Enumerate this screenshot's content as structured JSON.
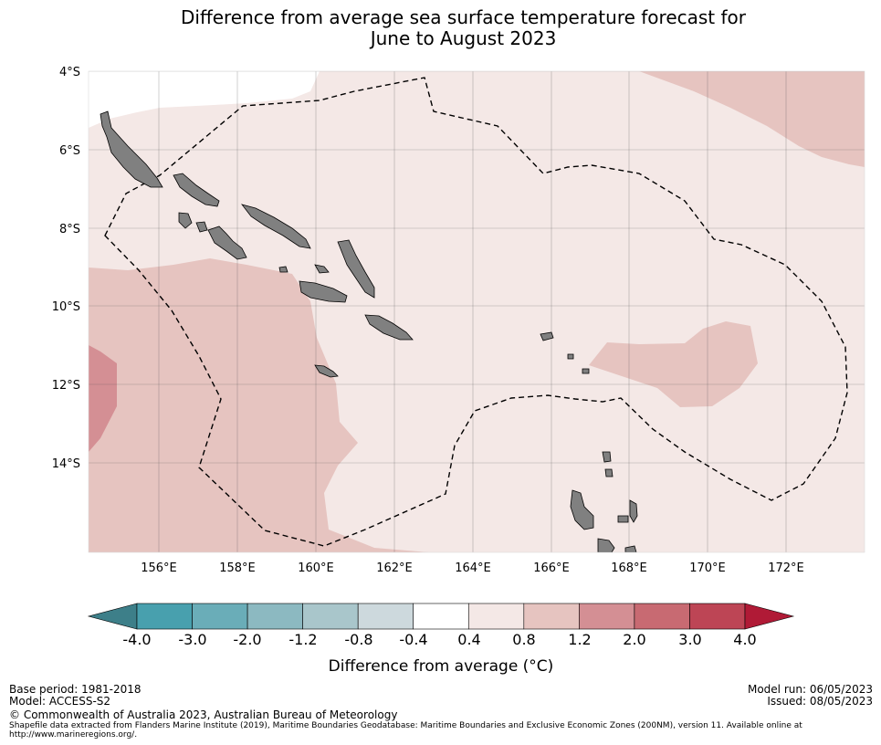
{
  "title_line1": "Difference from average sea surface temperature forecast for",
  "title_line2": "June to August 2023",
  "map": {
    "lat_labels": [
      "4°S",
      "6°S",
      "8°S",
      "10°S",
      "12°S",
      "14°S"
    ],
    "lon_labels": [
      "156°E",
      "158°E",
      "160°E",
      "162°E",
      "164°E",
      "166°E",
      "168°E",
      "170°E",
      "172°E"
    ],
    "colors": {
      "bin_0_4_0_8": "#f4e8e6",
      "bin_0_8_1_2": "#e6c4c0",
      "bin_1_2_2_0": "#d48f94",
      "land": "#808080",
      "eez_line": "#000000"
    }
  },
  "colorbar": {
    "tick_labels": [
      "-4.0",
      "-3.0",
      "-2.0",
      "-1.2",
      "-0.8",
      "-0.4",
      "0.4",
      "0.8",
      "1.2",
      "2.0",
      "3.0",
      "4.0"
    ],
    "colors": [
      "#3d7f89",
      "#48a0ae",
      "#6aadb8",
      "#8cb9c1",
      "#a9c6cb",
      "#cdd9dd",
      "#ffffff",
      "#f4e8e6",
      "#e6c4c0",
      "#d48f94",
      "#c86a72",
      "#bd4555",
      "#b01a36"
    ],
    "label": "Difference from average (°C)"
  },
  "footer": {
    "base_period": "Base period: 1981-2018",
    "model": "Model: ACCESS-S2",
    "model_run": "Model run: 06/05/2023",
    "issued": "Issued: 08/05/2023",
    "copyright": "© Commonwealth of Australia 2023, Australian Bureau of Meteorology",
    "source_line1": "Shapefile data extracted from Flanders Marine Institute (2019), Maritime Boundaries Geodatabase: Maritime Boundaries and Exclusive Economic Zones (200NM), version 11. Available online at",
    "source_line2": "http://www.marineregions.org/."
  }
}
